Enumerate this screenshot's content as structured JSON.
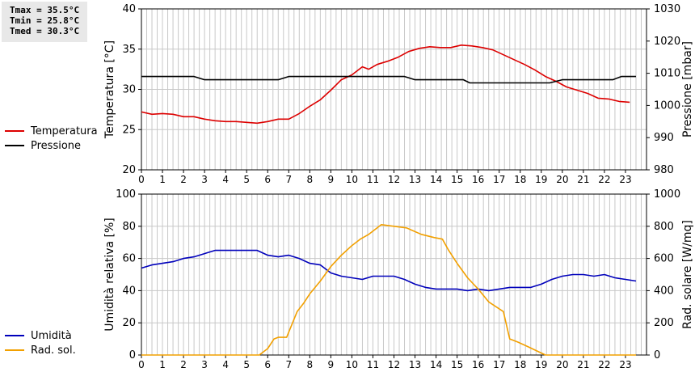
{
  "stats": {
    "tmax": "Tmax = 35.5°C",
    "tmin": "Tmin = 25.8°C",
    "tmed": "Tmed = 30.3°C"
  },
  "colors": {
    "temperature": "#dd0000",
    "pressure": "#000000",
    "humidity": "#0000bb",
    "solar": "#f2a000",
    "grid": "#c8c8c8"
  },
  "chart_data": [
    {
      "type": "line",
      "x_ticks": [
        "0",
        "1",
        "2",
        "3",
        "4",
        "5",
        "6",
        "7",
        "8",
        "9",
        "10",
        "11",
        "12",
        "13",
        "14",
        "15",
        "16",
        "17",
        "18",
        "19",
        "20",
        "21",
        "22",
        "23"
      ],
      "xlim": [
        0,
        24
      ],
      "left_axis": {
        "label": "Temperatura [°C]",
        "range": [
          20,
          40
        ],
        "ticks": [
          "20",
          "25",
          "30",
          "35",
          "40"
        ]
      },
      "right_axis": {
        "label": "Pressione [mbar]",
        "range": [
          980,
          1030
        ],
        "ticks": [
          "980",
          "990",
          "1000",
          "1010",
          "1020",
          "1030"
        ]
      },
      "grid": true,
      "legend_position": "left",
      "series": [
        {
          "name": "Temperatura",
          "axis": "left",
          "color_key": "temperature",
          "points": [
            [
              0,
              27.2
            ],
            [
              0.5,
              26.9
            ],
            [
              1,
              27.0
            ],
            [
              1.5,
              26.9
            ],
            [
              2,
              26.6
            ],
            [
              2.5,
              26.6
            ],
            [
              3,
              26.3
            ],
            [
              3.5,
              26.1
            ],
            [
              4,
              26.0
            ],
            [
              4.5,
              26.0
            ],
            [
              5,
              25.9
            ],
            [
              5.5,
              25.8
            ],
            [
              6,
              26.0
            ],
            [
              6.5,
              26.3
            ],
            [
              7,
              26.3
            ],
            [
              7.5,
              27.0
            ],
            [
              8,
              27.9
            ],
            [
              8.5,
              28.7
            ],
            [
              9,
              29.9
            ],
            [
              9.5,
              31.2
            ],
            [
              10,
              31.8
            ],
            [
              10.5,
              32.8
            ],
            [
              10.8,
              32.5
            ],
            [
              11.2,
              33.1
            ],
            [
              11.7,
              33.5
            ],
            [
              12.2,
              34.0
            ],
            [
              12.7,
              34.7
            ],
            [
              13.2,
              35.1
            ],
            [
              13.7,
              35.3
            ],
            [
              14.2,
              35.2
            ],
            [
              14.7,
              35.2
            ],
            [
              15.2,
              35.5
            ],
            [
              15.7,
              35.4
            ],
            [
              16.2,
              35.2
            ],
            [
              16.7,
              34.9
            ],
            [
              17.2,
              34.3
            ],
            [
              17.7,
              33.7
            ],
            [
              18.2,
              33.1
            ],
            [
              18.7,
              32.4
            ],
            [
              19.2,
              31.6
            ],
            [
              19.7,
              31.0
            ],
            [
              20.2,
              30.3
            ],
            [
              20.7,
              29.9
            ],
            [
              21.2,
              29.5
            ],
            [
              21.7,
              28.9
            ],
            [
              22.2,
              28.8
            ],
            [
              22.7,
              28.5
            ],
            [
              23.2,
              28.4
            ]
          ]
        },
        {
          "name": "Pressione",
          "axis": "right",
          "color_key": "pressure",
          "points": [
            [
              0,
              1009
            ],
            [
              2.5,
              1009
            ],
            [
              3,
              1008
            ],
            [
              6.5,
              1008
            ],
            [
              7,
              1009
            ],
            [
              12.5,
              1009
            ],
            [
              13,
              1008
            ],
            [
              15.3,
              1008
            ],
            [
              15.6,
              1007
            ],
            [
              19.4,
              1007
            ],
            [
              20,
              1008
            ],
            [
              22.4,
              1008
            ],
            [
              22.8,
              1009
            ],
            [
              23.5,
              1009
            ]
          ]
        }
      ]
    },
    {
      "type": "line",
      "x_ticks": [
        "0",
        "1",
        "2",
        "3",
        "4",
        "5",
        "6",
        "7",
        "8",
        "9",
        "10",
        "11",
        "12",
        "13",
        "14",
        "15",
        "16",
        "17",
        "18",
        "19",
        "20",
        "21",
        "22",
        "23"
      ],
      "xlim": [
        0,
        24
      ],
      "left_axis": {
        "label": "Umidità relativa [%]",
        "range": [
          0,
          100
        ],
        "ticks": [
          "0",
          "20",
          "40",
          "60",
          "80",
          "100"
        ]
      },
      "right_axis": {
        "label": "Rad. solare [W/mq]",
        "range": [
          0,
          1000
        ],
        "ticks": [
          "0",
          "200",
          "400",
          "600",
          "800",
          "1000"
        ]
      },
      "grid": true,
      "legend_position": "left",
      "series": [
        {
          "name": "Umidità",
          "axis": "left",
          "color_key": "humidity",
          "points": [
            [
              0,
              54
            ],
            [
              0.5,
              56
            ],
            [
              1,
              57
            ],
            [
              1.5,
              58
            ],
            [
              2,
              60
            ],
            [
              2.5,
              61
            ],
            [
              3,
              63
            ],
            [
              3.5,
              65
            ],
            [
              4,
              65
            ],
            [
              4.5,
              65
            ],
            [
              5,
              65
            ],
            [
              5.5,
              65
            ],
            [
              6,
              62
            ],
            [
              6.5,
              61
            ],
            [
              7,
              62
            ],
            [
              7.5,
              60
            ],
            [
              8,
              57
            ],
            [
              8.5,
              56
            ],
            [
              9,
              51
            ],
            [
              9.5,
              49
            ],
            [
              10,
              48
            ],
            [
              10.5,
              47
            ],
            [
              11,
              49
            ],
            [
              11.5,
              49
            ],
            [
              12,
              49
            ],
            [
              12.5,
              47
            ],
            [
              13,
              44
            ],
            [
              13.5,
              42
            ],
            [
              14,
              41
            ],
            [
              14.5,
              41
            ],
            [
              15,
              41
            ],
            [
              15.5,
              40
            ],
            [
              16,
              41
            ],
            [
              16.5,
              40
            ],
            [
              17,
              41
            ],
            [
              17.5,
              42
            ],
            [
              18,
              42
            ],
            [
              18.5,
              42
            ],
            [
              19,
              44
            ],
            [
              19.5,
              47
            ],
            [
              20,
              49
            ],
            [
              20.5,
              50
            ],
            [
              21,
              50
            ],
            [
              21.5,
              49
            ],
            [
              22,
              50
            ],
            [
              22.5,
              48
            ],
            [
              23,
              47
            ],
            [
              23.5,
              46
            ]
          ]
        },
        {
          "name": "Rad. sol.",
          "axis": "right",
          "color_key": "solar",
          "points": [
            [
              0,
              0
            ],
            [
              5.6,
              0
            ],
            [
              6,
              40
            ],
            [
              6.3,
              100
            ],
            [
              6.5,
              110
            ],
            [
              6.9,
              110
            ],
            [
              7.4,
              270
            ],
            [
              7.7,
              320
            ],
            [
              8,
              380
            ],
            [
              8.5,
              460
            ],
            [
              9,
              550
            ],
            [
              9.5,
              620
            ],
            [
              10,
              680
            ],
            [
              10.4,
              720
            ],
            [
              10.8,
              750
            ],
            [
              11.1,
              780
            ],
            [
              11.4,
              810
            ],
            [
              12,
              800
            ],
            [
              12.6,
              790
            ],
            [
              13.3,
              750
            ],
            [
              13.9,
              730
            ],
            [
              14.3,
              720
            ],
            [
              14.6,
              650
            ],
            [
              15,
              570
            ],
            [
              15.5,
              480
            ],
            [
              16,
              410
            ],
            [
              16.5,
              330
            ],
            [
              17.2,
              270
            ],
            [
              17.5,
              100
            ],
            [
              17.9,
              80
            ],
            [
              18.4,
              50
            ],
            [
              19.2,
              0
            ],
            [
              23.5,
              0
            ]
          ]
        }
      ]
    }
  ]
}
